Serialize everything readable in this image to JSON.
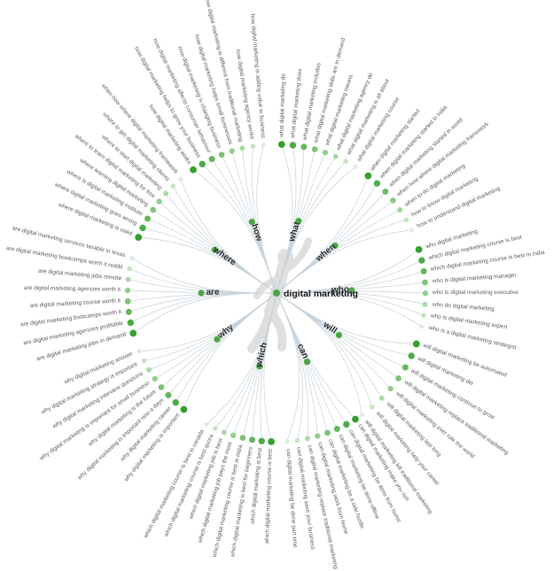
{
  "mindmap": {
    "center_label": "digital marketing",
    "branches": [
      {
        "label": "how",
        "angle": 109,
        "leaves": [
          {
            "text": "how digital marketing works",
            "angle": 124
          },
          {
            "text": "how digital marketing helps to grow your business",
            "angle": 119.9
          },
          {
            "text": "how digital marketing affects consumer behaviour",
            "angle": 115.7
          },
          {
            "text": "how digital marketing is changing business",
            "angle": 111.6
          },
          {
            "text": "how digital marketing helps small businesses",
            "angle": 107.4
          },
          {
            "text": "how digital marketing is different from traditional marketing",
            "angle": 103.3
          },
          {
            "text": "how digital marketing agency works",
            "angle": 99.1
          },
          {
            "text": "how digital marketing is adding value to business",
            "angle": 95
          }
        ]
      },
      {
        "label": "what",
        "angle": 73,
        "leaves": [
          {
            "text": "what digital marketing do",
            "angle": 88
          },
          {
            "text": "what digital marketing does",
            "angle": 83.7
          },
          {
            "text": "what digital marketing includes",
            "angle": 79.4
          },
          {
            "text": "what digital marketing skills are in demand",
            "angle": 75.1
          },
          {
            "text": "what digital marketing means",
            "angle": 70.9
          },
          {
            "text": "what digital marketing agency do",
            "angle": 66.6
          },
          {
            "text": "what digital marketing is all about",
            "angle": 62.3
          },
          {
            "text": "what digital marketing course",
            "angle": 58
          }
        ]
      },
      {
        "label": "when",
        "angle": 39,
        "leaves": [
          {
            "text": "when digital marketing started",
            "angle": 52
          },
          {
            "text": "when digital marketing started in india",
            "angle": 47.5
          },
          {
            "text": "when digital marketing started in world",
            "angle": 43
          },
          {
            "text": "when how where digital marketing framework",
            "angle": 38.5
          },
          {
            "text": "when to do digital marketing",
            "angle": 34
          },
          {
            "text": "how to know digital marketing",
            "angle": 29.5
          },
          {
            "text": "how to understand digital marketing",
            "angle": 25
          }
        ]
      },
      {
        "label": "who",
        "angle": 2,
        "leaves": [
          {
            "text": "who digital marketing",
            "angle": 17
          },
          {
            "text": "which digital marketing course is best",
            "angle": 12.7
          },
          {
            "text": "which digital marketing course is best in india",
            "angle": 8.4
          },
          {
            "text": "who is digital marketing manager",
            "angle": 4.1
          },
          {
            "text": "who is digital marketing executive",
            "angle": -0.1
          },
          {
            "text": "who do digital marketing",
            "angle": -4.4
          },
          {
            "text": "who is digital marketing expert",
            "angle": -8.7
          },
          {
            "text": "who is a digital marketing strategist",
            "angle": -13
          }
        ]
      },
      {
        "label": "will",
        "angle": -34,
        "leaves": [
          {
            "text": "will digital marketing be automated",
            "angle": -20
          },
          {
            "text": "will digital marketing die",
            "angle": -25
          },
          {
            "text": "will digital marketing continue to grow",
            "angle": -30
          },
          {
            "text": "will digital marketing replace traditional marketing",
            "angle": -35
          },
          {
            "text": "will digital marketing ever rule the world",
            "angle": -40
          },
          {
            "text": "will digital marketing last long",
            "angle": -45
          },
          {
            "text": "will digital marketing help your career",
            "angle": -50
          },
          {
            "text": "will digital marketing kill traditional marketing",
            "angle": -55
          }
        ]
      },
      {
        "label": "can",
        "angle": -66,
        "leaves": [
          {
            "text": "can digital marketing make you rich",
            "angle": -58
          },
          {
            "text": "can digital marketing be done from home",
            "angle": -62
          },
          {
            "text": "can digital marketing be done offline",
            "angle": -66
          },
          {
            "text": "can digital marketing be a side hustle",
            "angle": -70
          },
          {
            "text": "can digital marketing work from home",
            "angle": -74
          },
          {
            "text": "can digital marketing replace traditional marketing",
            "angle": -78
          },
          {
            "text": "can digital marketing save your business",
            "angle": -82
          },
          {
            "text": "can digital marketing be done part time",
            "angle": -86
          }
        ]
      },
      {
        "label": "which",
        "angle": -103,
        "leaves": [
          {
            "text": "which digital marketing course is best",
            "angle": -92
          },
          {
            "text": "which digital marketing is best",
            "angle": -95.7
          },
          {
            "text": "which digital marketing is best for beginners",
            "angle": -99.4
          },
          {
            "text": "which digital marketing course is best in india",
            "angle": -103.1
          },
          {
            "text": "which digital marketing job pays the most",
            "angle": -106.9
          },
          {
            "text": "which digital marketing job is best",
            "angle": -110.6
          },
          {
            "text": "which digital marketing course is best quora",
            "angle": -114.3
          },
          {
            "text": "which digital marketing course is best in canada",
            "angle": -118
          }
        ]
      },
      {
        "label": "why",
        "angle": -142,
        "leaves": [
          {
            "text": "why digital marketing is important",
            "angle": -128.5
          },
          {
            "text": "why digital marketing career",
            "angle": -132.6
          },
          {
            "text": "why digital marketing is important now a days",
            "angle": -136.6
          },
          {
            "text": "why digital marketing is the future",
            "angle": -140.7
          },
          {
            "text": "why digital marketing is important for small business",
            "angle": -144.8
          },
          {
            "text": "why digital marketing interview questions",
            "angle": -148.9
          },
          {
            "text": "why digital marketing strategy is important",
            "angle": -152.9
          },
          {
            "text": "why digital marketing answer",
            "angle": -157
          }
        ]
      },
      {
        "label": "are",
        "angle": 180,
        "leaves": [
          {
            "text": "are digital marketing jobs in demand",
            "angle": 195.7
          },
          {
            "text": "are digital marketing agencies profitable",
            "angle": 191.5
          },
          {
            "text": "are digital marketing bootcamps worth it",
            "angle": 187.3
          },
          {
            "text": "are digital marketing course worth it",
            "angle": 183.2
          },
          {
            "text": "are digital marketing agencies worth it",
            "angle": 179
          },
          {
            "text": "are digital marketing jobs remote",
            "angle": 174.8
          },
          {
            "text": "are digital marketing bootcamps worth it reddit",
            "angle": 170.6
          },
          {
            "text": "are digital marketing services taxable in texas",
            "angle": 166.4
          }
        ]
      },
      {
        "label": "where",
        "angle": 145,
        "leaves": [
          {
            "text": "where digital marketing is used",
            "angle": 158
          },
          {
            "text": "where digital marketing goes wrong",
            "angle": 154
          },
          {
            "text": "where is digital marketing institute",
            "angle": 150
          },
          {
            "text": "where learning digital marketing",
            "angle": 146
          },
          {
            "text": "where to learn digital marketing for free",
            "angle": 142
          },
          {
            "text": "where to start digital marketing",
            "angle": 138
          },
          {
            "text": "where to get digital marketing clients",
            "angle": 134
          },
          {
            "text": "when how where digital marketing framework",
            "angle": 130
          }
        ]
      }
    ]
  },
  "icons": {
    "center_figure": "person-silhouette"
  },
  "colors": {
    "dot_dark": "#35a02d",
    "dot_light": "#dcefd8",
    "hub_dot": "#4aa743",
    "line": "#c7d3dc",
    "leaf_text": "#5d5d5d",
    "branch_text": "#2e2e2e",
    "center_text": "#111111",
    "silhouette": "#d9d9d9"
  }
}
